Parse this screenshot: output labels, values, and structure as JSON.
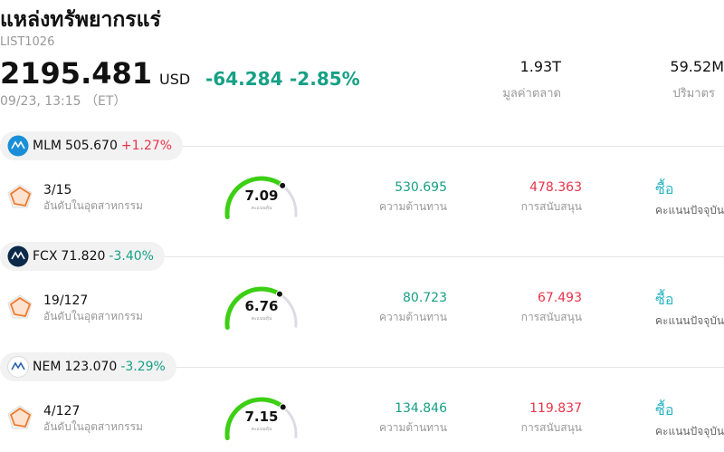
{
  "header": {
    "title": "แหล่งทรัพยากรแร่",
    "code": "LIST1026",
    "price": "2195.481",
    "currency": "USD",
    "change": "-64.284",
    "change_pct": "-2.85%",
    "time": "09/23, 13:15 （ET）",
    "market_cap": "1.93T",
    "market_cap_label": "มูลค่าตลาด",
    "volume": "59.52M",
    "volume_label": "ปริมาตร"
  },
  "stocks": [
    {
      "ticker": "MLM",
      "price": "505.670",
      "change": "+1.27%",
      "rank": "3/15",
      "rank_label": "อันดับในอุตสาหกรรม",
      "score": 7.09,
      "score_label": "คะแนนหุ้น",
      "resistance": "530.695",
      "resistance_label": "ความต้านทาน",
      "support": "478.363",
      "support_label": "การสนับสนุน",
      "action": "ซื้อ",
      "action_label": "คะแนนปัจจุบัน"
    },
    {
      "ticker": "FCX",
      "price": "71.820",
      "change": "-3.40%",
      "rank": "19/127",
      "rank_label": "อันดับในอุตสาหกรรม",
      "score": 6.76,
      "score_label": "คะแนนหุ้น",
      "resistance": "80.723",
      "resistance_label": "ความต้านทาน",
      "support": "67.493",
      "support_label": "การสนับสนุน",
      "action": "ซื้อ",
      "action_label": "คะแนนปัจจุบัน"
    },
    {
      "ticker": "NEM",
      "price": "123.070",
      "change": "-3.29%",
      "rank": "4/127",
      "rank_label": "อันดับในอุตสาหกรรม",
      "score": 7.15,
      "score_label": "คะแนนหุ้น",
      "resistance": "134.846",
      "resistance_label": "ความต้านทาน",
      "support": "119.837",
      "support_label": "การสนับสนุน",
      "action": "ซื้อ",
      "action_label": "คะแนนปัจจุบัน"
    }
  ]
}
